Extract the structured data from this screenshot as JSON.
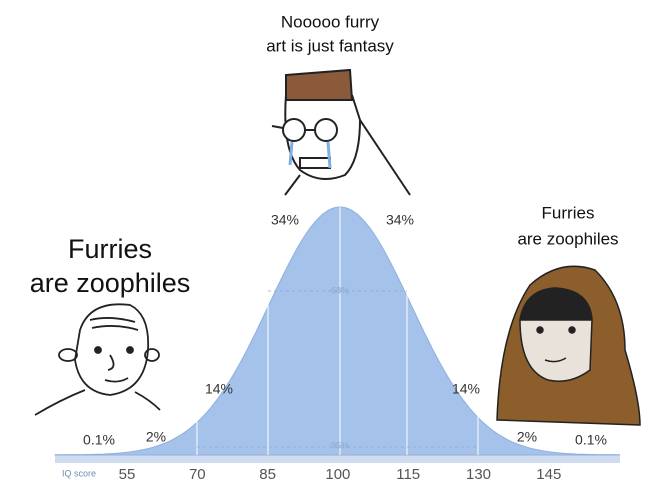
{
  "captions": {
    "middle": [
      "Nooooo furry",
      "art is just fantasy"
    ],
    "left": [
      "Furries",
      "are zoophiles"
    ],
    "right": [
      "Furries",
      "are zoophiles"
    ]
  },
  "percent_labels": [
    "34%",
    "34%",
    "14%",
    "14%",
    "2%",
    "2%",
    "0.1%",
    "0.1%"
  ],
  "inner_labels": [
    "68%",
    "95%"
  ],
  "axis": {
    "label": "IQ score",
    "ticks": [
      "55",
      "70",
      "85",
      "100",
      "115",
      "130",
      "145"
    ]
  }
}
